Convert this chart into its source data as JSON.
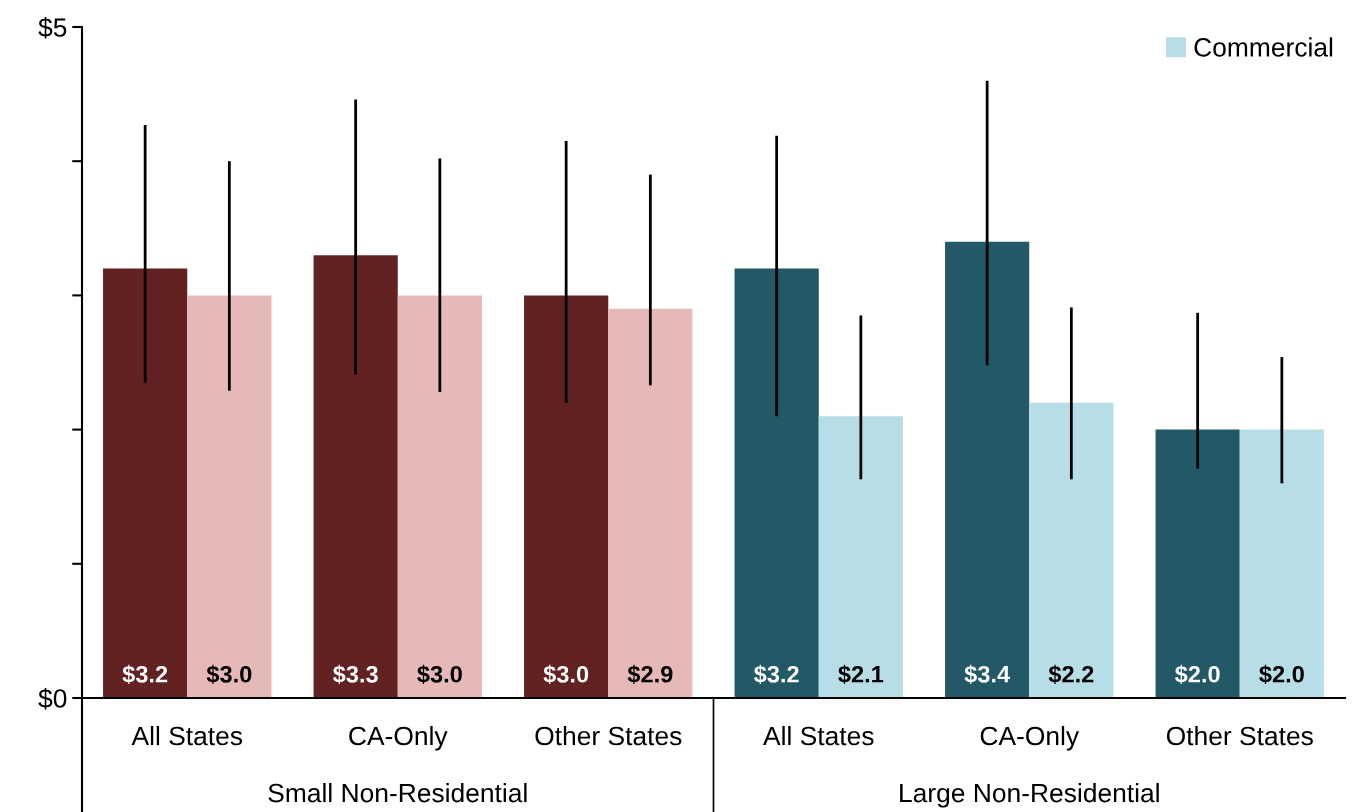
{
  "chart_data": {
    "type": "bar",
    "categories": [
      "All States",
      "CA-Only",
      "Other States",
      "All States",
      "CA-Only",
      "Other States"
    ],
    "series": [
      {
        "colors": [
          "#632222",
          "#632222",
          "#632222",
          "#235867",
          "#235867",
          "#235867"
        ],
        "values": [
          3.2,
          3.3,
          3.0,
          3.2,
          3.4,
          2.0
        ],
        "errors": [
          [
            2.36,
            4.26
          ],
          [
            2.42,
            4.45
          ],
          [
            2.21,
            4.14
          ],
          [
            2.11,
            4.18
          ],
          [
            2.49,
            4.59
          ],
          [
            1.72,
            2.86
          ]
        ],
        "value_labels": [
          "$3.2",
          "$3.3",
          "$3.0",
          "$3.2",
          "$3.4",
          "$2.0"
        ]
      },
      {
        "name": "Commercial",
        "color": "#b7dde6",
        "colors": [
          "#e6b8b8",
          "#e6b8b8",
          "#e6b8b8",
          "#b7dde6",
          "#b7dde6",
          "#b7dde6"
        ],
        "values": [
          3.0,
          3.0,
          2.9,
          2.1,
          2.2,
          2.0
        ],
        "errors": [
          [
            2.3,
            3.99
          ],
          [
            2.29,
            4.01
          ],
          [
            2.34,
            3.89
          ],
          [
            1.64,
            2.84
          ],
          [
            1.64,
            2.9
          ],
          [
            1.61,
            2.53
          ]
        ],
        "value_labels": [
          "$3.0",
          "$3.0",
          "$2.9",
          "$2.1",
          "$2.2",
          "$2.0"
        ]
      }
    ],
    "ylim": [
      0,
      5
    ],
    "yticks": [
      {
        "value": 0,
        "label": "$0"
      },
      {
        "value": 1,
        "label": null
      },
      {
        "value": 2,
        "label": null
      },
      {
        "value": 3,
        "label": null
      },
      {
        "value": 4,
        "label": null
      },
      {
        "value": 5,
        "label": "$5"
      }
    ],
    "annotations": [
      "Small Non-Residential",
      "Large Non-Residential"
    ],
    "grid": false,
    "legend": "top right"
  }
}
